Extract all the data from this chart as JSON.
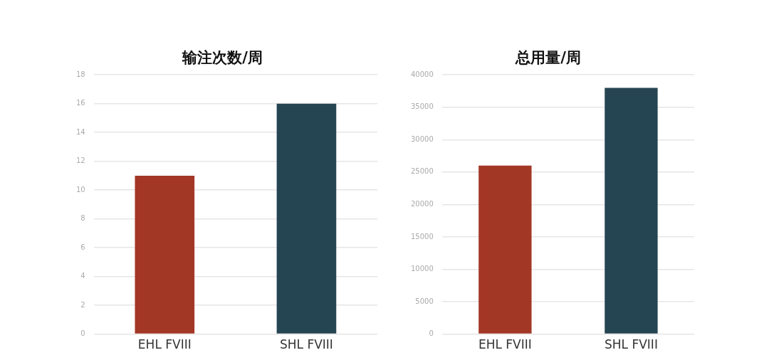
{
  "chart_data": [
    {
      "type": "bar",
      "title": "输注次数/周",
      "categories": [
        "EHL FVIII",
        "SHL FVIII"
      ],
      "values": [
        11,
        16
      ],
      "colors": [
        "#a33726",
        "#264552"
      ],
      "ylim": [
        0,
        18
      ],
      "yticks": [
        0,
        2,
        4,
        6,
        8,
        10,
        12,
        14,
        16,
        18
      ],
      "grid": "y",
      "legend": false
    },
    {
      "type": "bar",
      "title": "总用量/周",
      "categories": [
        "EHL FVIII",
        "SHL FVIII"
      ],
      "values": [
        26000,
        38000
      ],
      "colors": [
        "#a33726",
        "#264552"
      ],
      "ylim": [
        0,
        40000
      ],
      "yticks": [
        0,
        5000,
        10000,
        15000,
        20000,
        25000,
        30000,
        35000,
        40000
      ],
      "grid": "y",
      "legend": false
    }
  ]
}
